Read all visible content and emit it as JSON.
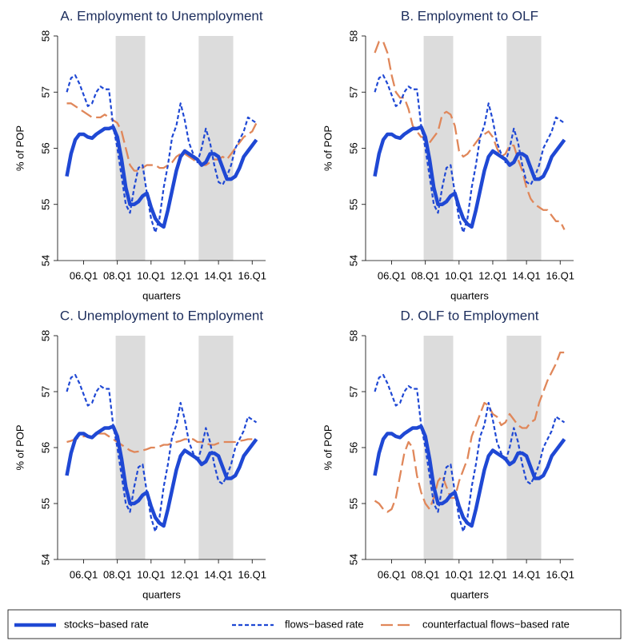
{
  "chart_data": [
    {
      "type": "line",
      "title": "A. Employment to Unemployment",
      "ylabel": "% of POP",
      "xlabel": "quarters",
      "categories": [
        null,
        null,
        null,
        null,
        "06.Q1",
        null,
        null,
        null,
        null,
        null,
        null,
        null,
        "08.Q1",
        null,
        null,
        null,
        null,
        null,
        null,
        null,
        "10.Q1",
        null,
        null,
        null,
        null,
        null,
        null,
        null,
        "12.Q1",
        null,
        null,
        null,
        null,
        null,
        null,
        null,
        "14.Q1",
        null,
        null,
        null,
        null,
        null,
        null,
        null,
        "16.Q1",
        null
      ],
      "ylim": [
        54,
        58
      ],
      "yticks": [
        54,
        55,
        56,
        57,
        58
      ],
      "shading": [
        [
          11.6,
          18.6
        ],
        [
          31.3,
          39.5
        ]
      ],
      "series": [
        {
          "name": "stocks−based rate",
          "color": "#1f48d4",
          "style": "solid",
          "values": [
            55.5,
            55.9,
            56.15,
            56.25,
            56.25,
            56.2,
            56.18,
            56.25,
            56.3,
            56.35,
            56.35,
            56.38,
            56.2,
            55.8,
            55.3,
            55.0,
            55.0,
            55.05,
            55.15,
            55.2,
            54.95,
            54.75,
            54.65,
            54.6,
            54.9,
            55.25,
            55.6,
            55.85,
            55.95,
            55.9,
            55.85,
            55.8,
            55.7,
            55.75,
            55.9,
            55.9,
            55.85,
            55.65,
            55.45,
            55.45,
            55.5,
            55.65,
            55.85,
            55.95,
            56.05,
            56.15
          ]
        },
        {
          "name": "flows−based rate",
          "color": "#1f48d4",
          "style": "dashed",
          "values": [
            57.0,
            57.25,
            57.3,
            57.15,
            56.95,
            56.75,
            56.8,
            57.0,
            57.1,
            57.05,
            57.05,
            56.4,
            56.0,
            55.5,
            55.0,
            54.85,
            55.3,
            55.65,
            55.7,
            55.2,
            54.75,
            54.5,
            54.75,
            55.3,
            55.7,
            56.2,
            56.4,
            56.8,
            56.5,
            56.1,
            55.9,
            55.75,
            56.0,
            56.35,
            56.1,
            55.7,
            55.4,
            55.35,
            55.5,
            55.7,
            56.0,
            56.15,
            56.3,
            56.55,
            56.5,
            56.45
          ]
        },
        {
          "name": "counterfactual flows−based rate",
          "color": "#e0875a",
          "style": "longdash",
          "values": [
            56.8,
            56.8,
            56.75,
            56.7,
            56.65,
            56.6,
            56.55,
            56.55,
            56.55,
            56.6,
            56.55,
            56.5,
            56.45,
            56.3,
            56.0,
            55.7,
            55.6,
            55.6,
            55.65,
            55.7,
            55.7,
            55.7,
            55.65,
            55.65,
            55.7,
            55.75,
            55.85,
            55.9,
            55.9,
            55.85,
            55.8,
            55.75,
            55.7,
            55.7,
            55.75,
            55.8,
            55.8,
            55.85,
            55.8,
            55.9,
            56.0,
            56.1,
            56.2,
            56.25,
            56.3,
            56.45
          ]
        }
      ]
    },
    {
      "type": "line",
      "title": "B. Employment to OLF",
      "ylabel": "% of POP",
      "xlabel": "quarters",
      "categories": [
        null,
        null,
        null,
        null,
        "06.Q1",
        null,
        null,
        null,
        null,
        null,
        null,
        null,
        "08.Q1",
        null,
        null,
        null,
        null,
        null,
        null,
        null,
        "10.Q1",
        null,
        null,
        null,
        null,
        null,
        null,
        null,
        "12.Q1",
        null,
        null,
        null,
        null,
        null,
        null,
        null,
        "14.Q1",
        null,
        null,
        null,
        null,
        null,
        null,
        null,
        "16.Q1",
        null
      ],
      "ylim": [
        54,
        58
      ],
      "yticks": [
        54,
        55,
        56,
        57,
        58
      ],
      "shading": [
        [
          11.6,
          18.6
        ],
        [
          31.3,
          39.5
        ]
      ],
      "series": [
        {
          "name": "stocks−based rate",
          "color": "#1f48d4",
          "style": "solid",
          "values": [
            55.5,
            55.9,
            56.15,
            56.25,
            56.25,
            56.2,
            56.18,
            56.25,
            56.3,
            56.35,
            56.35,
            56.38,
            56.2,
            55.8,
            55.3,
            55.0,
            55.0,
            55.05,
            55.15,
            55.2,
            54.95,
            54.75,
            54.65,
            54.6,
            54.9,
            55.25,
            55.6,
            55.85,
            55.95,
            55.9,
            55.85,
            55.8,
            55.7,
            55.75,
            55.9,
            55.9,
            55.85,
            55.65,
            55.45,
            55.45,
            55.5,
            55.65,
            55.85,
            55.95,
            56.05,
            56.15
          ]
        },
        {
          "name": "flows−based rate",
          "color": "#1f48d4",
          "style": "dashed",
          "values": [
            57.0,
            57.25,
            57.3,
            57.15,
            56.95,
            56.75,
            56.8,
            57.0,
            57.1,
            57.05,
            57.05,
            56.4,
            56.0,
            55.5,
            55.0,
            54.85,
            55.3,
            55.65,
            55.7,
            55.2,
            54.75,
            54.5,
            54.75,
            55.3,
            55.7,
            56.2,
            56.4,
            56.8,
            56.5,
            56.1,
            55.9,
            55.75,
            56.0,
            56.35,
            56.1,
            55.7,
            55.4,
            55.35,
            55.5,
            55.7,
            56.0,
            56.15,
            56.3,
            56.55,
            56.5,
            56.45
          ]
        },
        {
          "name": "counterfactual flows−based rate",
          "color": "#e0875a",
          "style": "longdash",
          "values": [
            57.7,
            57.9,
            57.9,
            57.7,
            57.3,
            57.0,
            56.9,
            56.9,
            56.7,
            56.4,
            56.3,
            56.2,
            56.2,
            56.1,
            56.2,
            56.3,
            56.6,
            56.65,
            56.6,
            56.4,
            55.95,
            55.85,
            55.9,
            56.0,
            56.1,
            56.2,
            56.25,
            56.3,
            56.2,
            56.0,
            55.85,
            55.9,
            56.05,
            56.05,
            55.8,
            55.6,
            55.3,
            55.1,
            55.0,
            54.95,
            54.9,
            54.9,
            54.8,
            54.7,
            54.7,
            54.55
          ]
        }
      ]
    },
    {
      "type": "line",
      "title": "C. Unemployment to Employment",
      "ylabel": "% of POP",
      "xlabel": "quarters",
      "categories": [
        null,
        null,
        null,
        null,
        "06.Q1",
        null,
        null,
        null,
        null,
        null,
        null,
        null,
        "08.Q1",
        null,
        null,
        null,
        null,
        null,
        null,
        null,
        "10.Q1",
        null,
        null,
        null,
        null,
        null,
        null,
        null,
        "12.Q1",
        null,
        null,
        null,
        null,
        null,
        null,
        null,
        "14.Q1",
        null,
        null,
        null,
        null,
        null,
        null,
        null,
        "16.Q1",
        null
      ],
      "ylim": [
        54,
        58
      ],
      "yticks": [
        54,
        55,
        56,
        57,
        58
      ],
      "shading": [
        [
          11.6,
          18.6
        ],
        [
          31.3,
          39.5
        ]
      ],
      "series": [
        {
          "name": "stocks−based rate",
          "color": "#1f48d4",
          "style": "solid",
          "values": [
            55.5,
            55.9,
            56.15,
            56.25,
            56.25,
            56.2,
            56.18,
            56.25,
            56.3,
            56.35,
            56.35,
            56.38,
            56.2,
            55.8,
            55.3,
            55.0,
            55.0,
            55.05,
            55.15,
            55.2,
            54.95,
            54.75,
            54.65,
            54.6,
            54.9,
            55.25,
            55.6,
            55.85,
            55.95,
            55.9,
            55.85,
            55.8,
            55.7,
            55.75,
            55.9,
            55.9,
            55.85,
            55.65,
            55.45,
            55.45,
            55.5,
            55.65,
            55.85,
            55.95,
            56.05,
            56.15
          ]
        },
        {
          "name": "flows−based rate",
          "color": "#1f48d4",
          "style": "dashed",
          "values": [
            57.0,
            57.25,
            57.3,
            57.15,
            56.95,
            56.75,
            56.8,
            57.0,
            57.1,
            57.05,
            57.05,
            56.4,
            56.0,
            55.5,
            55.0,
            54.85,
            55.3,
            55.65,
            55.7,
            55.2,
            54.75,
            54.5,
            54.75,
            55.3,
            55.7,
            56.2,
            56.4,
            56.8,
            56.5,
            56.1,
            55.9,
            55.75,
            56.0,
            56.35,
            56.1,
            55.7,
            55.4,
            55.35,
            55.5,
            55.7,
            56.0,
            56.15,
            56.3,
            56.55,
            56.5,
            56.45
          ]
        },
        {
          "name": "counterfactual flows−based rate",
          "color": "#e0875a",
          "style": "longdash",
          "values": [
            56.1,
            56.12,
            56.15,
            56.18,
            56.2,
            56.2,
            56.2,
            56.25,
            56.25,
            56.25,
            56.2,
            56.15,
            56.1,
            56.05,
            56.0,
            55.95,
            55.92,
            55.93,
            55.95,
            55.97,
            56.0,
            56.0,
            56.02,
            56.05,
            56.05,
            56.08,
            56.1,
            56.12,
            56.15,
            56.15,
            56.15,
            56.1,
            56.1,
            56.08,
            56.05,
            56.05,
            56.08,
            56.1,
            56.1,
            56.1,
            56.1,
            56.12,
            56.13,
            56.15,
            56.15,
            56.15
          ]
        }
      ]
    },
    {
      "type": "line",
      "title": "D. OLF to Employment",
      "ylabel": "% of POP",
      "xlabel": "quarters",
      "categories": [
        null,
        null,
        null,
        null,
        "06.Q1",
        null,
        null,
        null,
        null,
        null,
        null,
        null,
        "08.Q1",
        null,
        null,
        null,
        null,
        null,
        null,
        null,
        "10.Q1",
        null,
        null,
        null,
        null,
        null,
        null,
        null,
        "12.Q1",
        null,
        null,
        null,
        null,
        null,
        null,
        null,
        "14.Q1",
        null,
        null,
        null,
        null,
        null,
        null,
        null,
        "16.Q1",
        null
      ],
      "ylim": [
        54,
        58
      ],
      "yticks": [
        54,
        55,
        56,
        57,
        58
      ],
      "shading": [
        [
          11.6,
          18.6
        ],
        [
          31.3,
          39.5
        ]
      ],
      "series": [
        {
          "name": "stocks−based rate",
          "color": "#1f48d4",
          "style": "solid",
          "values": [
            55.5,
            55.9,
            56.15,
            56.25,
            56.25,
            56.2,
            56.18,
            56.25,
            56.3,
            56.35,
            56.35,
            56.38,
            56.2,
            55.8,
            55.3,
            55.0,
            55.0,
            55.05,
            55.15,
            55.2,
            54.95,
            54.75,
            54.65,
            54.6,
            54.9,
            55.25,
            55.6,
            55.85,
            55.95,
            55.9,
            55.85,
            55.8,
            55.7,
            55.75,
            55.9,
            55.9,
            55.85,
            55.65,
            55.45,
            55.45,
            55.5,
            55.65,
            55.85,
            55.95,
            56.05,
            56.15
          ]
        },
        {
          "name": "flows−based rate",
          "color": "#1f48d4",
          "style": "dashed",
          "values": [
            57.0,
            57.25,
            57.3,
            57.15,
            56.95,
            56.75,
            56.8,
            57.0,
            57.1,
            57.05,
            57.05,
            56.4,
            56.0,
            55.5,
            55.0,
            54.85,
            55.3,
            55.65,
            55.7,
            55.2,
            54.75,
            54.5,
            54.75,
            55.3,
            55.7,
            56.2,
            56.4,
            56.8,
            56.5,
            56.1,
            55.9,
            55.75,
            56.0,
            56.35,
            56.1,
            55.7,
            55.4,
            55.35,
            55.5,
            55.7,
            56.0,
            56.15,
            56.3,
            56.55,
            56.5,
            56.45
          ]
        },
        {
          "name": "counterfactual flows−based rate",
          "color": "#e0875a",
          "style": "longdash",
          "values": [
            55.05,
            55.0,
            54.9,
            54.85,
            54.9,
            55.1,
            55.5,
            55.9,
            56.1,
            56.0,
            55.5,
            55.2,
            55.0,
            54.9,
            55.1,
            55.4,
            55.5,
            55.3,
            55.1,
            55.1,
            55.4,
            55.6,
            55.8,
            56.2,
            56.4,
            56.6,
            56.8,
            56.75,
            56.6,
            56.55,
            56.4,
            56.45,
            56.6,
            56.5,
            56.4,
            56.35,
            56.35,
            56.45,
            56.5,
            56.8,
            57.0,
            57.2,
            57.35,
            57.5,
            57.7,
            57.7
          ]
        }
      ]
    }
  ]
}
